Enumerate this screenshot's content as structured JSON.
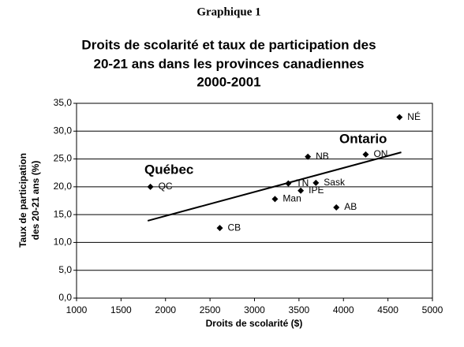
{
  "header": "Graphique 1",
  "chart_data": {
    "type": "scatter",
    "title": [
      "Droits de scolarité et taux de participation des",
      "20-21 ans dans les provinces canadiennes",
      "2000-2001"
    ],
    "x_label": "Droits de scolarité ($)",
    "y_label": [
      "Taux de participation",
      "des 20-21 ans (%)"
    ],
    "x": [
      4630,
      4250,
      3600,
      3380,
      3690,
      3520,
      3230,
      3920,
      1830,
      2610
    ],
    "values": [
      32.5,
      25.8,
      25.4,
      20.6,
      20.7,
      19.3,
      17.8,
      16.3,
      20.0,
      12.6
    ],
    "labels": [
      "NÉ",
      "ON",
      "NB",
      "TN",
      "Sask",
      "IPE",
      "Man",
      "AB",
      "QC",
      "CB"
    ],
    "color": "#000000",
    "trendline": {
      "x": [
        1800,
        4650
      ],
      "y": [
        13.9,
        26.2
      ]
    },
    "annotations": [
      "Québec",
      "Ontario"
    ],
    "xlim": [
      1000,
      5000
    ],
    "xticks": [
      1000,
      1500,
      2000,
      2500,
      3000,
      3500,
      4000,
      4500,
      5000
    ],
    "ylim": [
      0,
      35
    ],
    "yticks": [
      {
        "value": 0,
        "label": "0,0"
      },
      {
        "value": 5,
        "label": "5,0"
      },
      {
        "value": 10,
        "label": "10,0"
      },
      {
        "value": 15,
        "label": "15,0"
      },
      {
        "value": 20,
        "label": "20,0"
      },
      {
        "value": 25,
        "label": "25,0"
      },
      {
        "value": 30,
        "label": "30,0"
      },
      {
        "value": 35,
        "label": "35,0"
      }
    ],
    "grid": true
  }
}
